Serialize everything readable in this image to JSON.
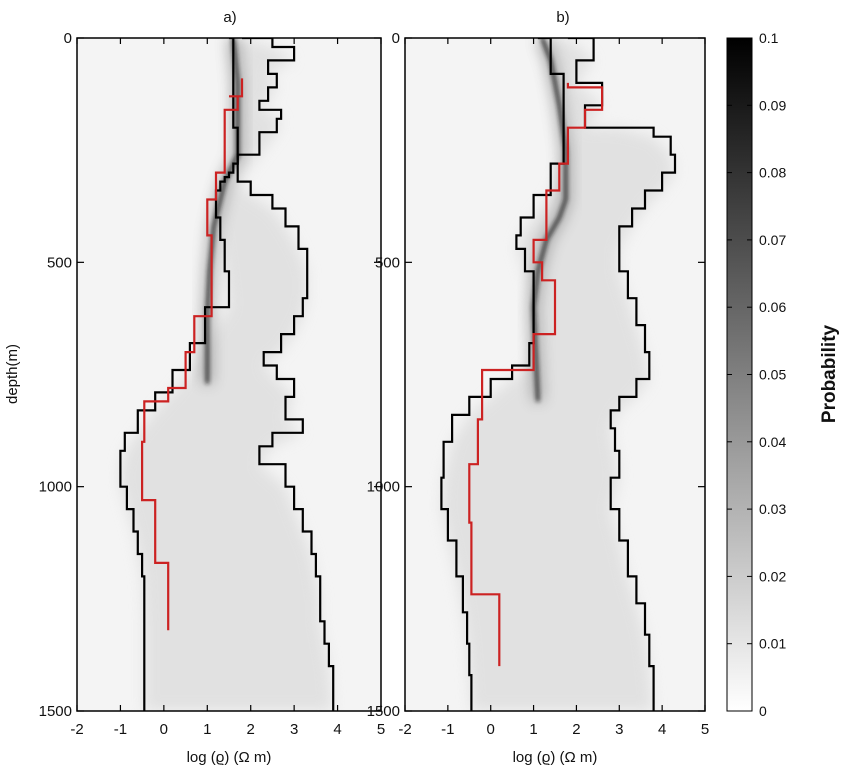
{
  "chart_data": [
    {
      "type": "line",
      "title": "a)",
      "xlabel": "log (ϱ) (Ω m)",
      "ylabel": "depth(m)",
      "xlim": [
        -2,
        5
      ],
      "ylim": [
        0,
        1500
      ],
      "y_inverted": true,
      "xticks": [
        "-2",
        "-1",
        "0",
        "1",
        "2",
        "3",
        "4",
        "5"
      ],
      "yticks": [
        "0",
        "500",
        "1000",
        "1500"
      ],
      "background": "probability density (grayscale)",
      "ridges": [
        {
          "x": [
            1.6,
            1.7,
            1.7,
            1.4,
            1.15,
            1.05,
            1.0,
            1.0,
            1.0
          ],
          "depth": [
            0,
            100,
            260,
            320,
            420,
            520,
            620,
            700,
            770
          ]
        }
      ],
      "series": [
        {
          "color": "#000000",
          "x": [
            1.5,
            1.6,
            1.6,
            1.7,
            1.6,
            1.5,
            1.4,
            1.3,
            1.2,
            1.2,
            1.3,
            1.4,
            1.5,
            0.95,
            0.6,
            0.2,
            -0.2,
            -0.6,
            -0.9,
            -1.0,
            -1.0,
            -0.85,
            -0.7,
            -0.6,
            -0.5,
            -0.45,
            -0.45,
            -0.45
          ],
          "depth": [
            0,
            100,
            200,
            280,
            300,
            310,
            320,
            340,
            360,
            400,
            450,
            520,
            600,
            680,
            740,
            790,
            830,
            880,
            920,
            960,
            1000,
            1050,
            1100,
            1150,
            1200,
            1300,
            1400,
            1500
          ]
        },
        {
          "color": "#000000",
          "x": [
            1.8,
            2.5,
            3.0,
            2.4,
            2.6,
            2.4,
            2.2,
            2.7,
            2.6,
            2.2,
            1.7,
            2.0,
            2.5,
            2.8,
            3.1,
            3.3,
            3.3,
            3.2,
            3.0,
            2.7,
            2.3,
            2.6,
            3.0,
            2.8,
            3.2,
            2.5,
            2.2,
            2.8,
            3.0,
            3.2,
            3.4,
            3.5,
            3.6,
            3.6,
            3.7,
            3.8,
            3.9
          ],
          "depth": [
            0,
            20,
            50,
            80,
            110,
            140,
            160,
            180,
            210,
            260,
            320,
            350,
            380,
            420,
            470,
            520,
            580,
            620,
            660,
            700,
            730,
            760,
            800,
            850,
            880,
            910,
            950,
            1000,
            1050,
            1100,
            1150,
            1200,
            1250,
            1300,
            1350,
            1400,
            1500
          ]
        },
        {
          "color": "#cc2222",
          "x": [
            1.8,
            1.8,
            1.5,
            1.7,
            1.4,
            1.2,
            1.2,
            1.0,
            1.0,
            1.1,
            1.1,
            0.7,
            0.7,
            0.5,
            0.5,
            0.1,
            0.1,
            -0.45,
            -0.45,
            -0.5,
            -0.5,
            -0.2,
            -0.2,
            0.1,
            0.1
          ],
          "depth": [
            90,
            130,
            130,
            160,
            300,
            300,
            360,
            360,
            440,
            440,
            620,
            620,
            700,
            700,
            780,
            780,
            810,
            810,
            900,
            900,
            1030,
            1030,
            1170,
            1170,
            1320
          ]
        }
      ]
    },
    {
      "type": "line",
      "title": "b)",
      "xlabel": "log (ϱ) (Ω m)",
      "ylabel": "",
      "xlim": [
        -2,
        5
      ],
      "ylim": [
        0,
        1500
      ],
      "y_inverted": true,
      "xticks": [
        "-2",
        "-1",
        "0",
        "1",
        "2",
        "3",
        "4",
        "5"
      ],
      "yticks": [
        "0",
        "500",
        "1000",
        "1500"
      ],
      "background": "probability density (grayscale)",
      "ridges": [
        {
          "x": [
            1.2,
            1.4,
            1.6,
            1.75,
            1.75,
            1.75,
            1.6,
            1.3,
            1.1,
            1.0,
            1.05,
            1.1
          ],
          "depth": [
            0,
            50,
            150,
            250,
            330,
            360,
            400,
            450,
            520,
            600,
            700,
            810
          ]
        }
      ],
      "series": [
        {
          "color": "#000000",
          "x": [
            1.1,
            1.4,
            1.7,
            1.7,
            1.4,
            1.0,
            0.7,
            0.6,
            0.8,
            1.0,
            1.0,
            0.9,
            0.5,
            0.0,
            -0.5,
            -0.9,
            -1.1,
            -1.15,
            -1.0,
            -0.8,
            -0.65,
            -0.55,
            -0.5,
            -0.45
          ],
          "depth": [
            0,
            80,
            180,
            280,
            350,
            400,
            440,
            470,
            520,
            600,
            680,
            730,
            760,
            800,
            840,
            900,
            980,
            1050,
            1120,
            1200,
            1280,
            1350,
            1420,
            1500
          ]
        },
        {
          "color": "#000000",
          "x": [
            1.8,
            2.4,
            2.0,
            2.6,
            2.2,
            3.0,
            3.8,
            4.2,
            4.3,
            4.0,
            3.6,
            3.3,
            3.0,
            3.0,
            3.2,
            3.4,
            3.6,
            3.7,
            3.4,
            3.0,
            2.8,
            2.9,
            3.0,
            2.8,
            3.0,
            3.2,
            3.4,
            3.6,
            3.7,
            3.8
          ],
          "depth": [
            0,
            50,
            100,
            150,
            200,
            200,
            220,
            260,
            300,
            340,
            380,
            420,
            470,
            520,
            580,
            640,
            700,
            760,
            800,
            830,
            870,
            920,
            980,
            1050,
            1120,
            1200,
            1260,
            1330,
            1400,
            1500
          ]
        },
        {
          "color": "#cc2222",
          "x": [
            1.8,
            1.8,
            2.6,
            2.6,
            2.2,
            2.2,
            1.8,
            1.8,
            1.6,
            1.6,
            1.3,
            1.3,
            1.0,
            1.0,
            1.2,
            1.2,
            1.5,
            1.5,
            1.0,
            1.0,
            -0.2,
            -0.2,
            -0.3,
            -0.3,
            -0.5,
            -0.5,
            -0.45,
            -0.45,
            0.2,
            0.2
          ],
          "depth": [
            100,
            110,
            130,
            160,
            160,
            200,
            200,
            280,
            280,
            340,
            340,
            450,
            450,
            500,
            500,
            540,
            540,
            660,
            660,
            740,
            740,
            850,
            850,
            950,
            950,
            1080,
            1080,
            1240,
            1240,
            1400
          ]
        }
      ]
    }
  ],
  "colorbar": {
    "label": "Probability",
    "min": 0,
    "max": 0.1,
    "ticks": [
      "0.1",
      "0.09",
      "0.08",
      "0.07",
      "0.06",
      "0.05",
      "0.04",
      "0.03",
      "0.02",
      "0.01",
      "0"
    ]
  }
}
